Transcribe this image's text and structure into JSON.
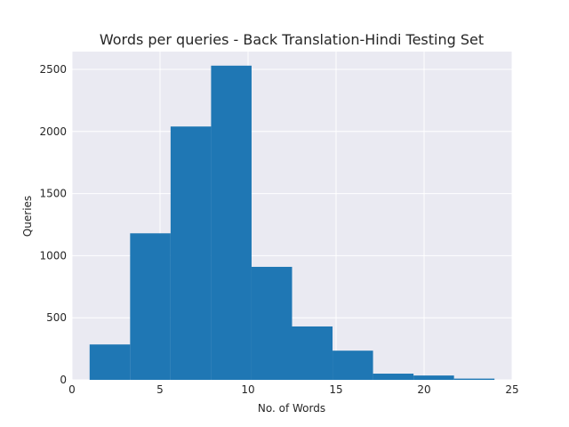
{
  "chart_data": {
    "type": "bar",
    "title": "Words per queries - Back Translation-Hindi Testing Set",
    "xlabel": "No. of Words",
    "ylabel": "Queries",
    "xlim": [
      0,
      25
    ],
    "ylim": [
      0,
      2500
    ],
    "xticks": [
      0,
      5,
      10,
      15,
      20,
      25
    ],
    "yticks": [
      0,
      500,
      1000,
      1500,
      2000,
      2500
    ],
    "grid": true,
    "bin_edges": [
      1.0,
      3.3,
      5.6,
      7.9,
      10.2,
      12.5,
      14.8,
      17.1,
      19.4,
      21.7,
      24.0
    ],
    "values": [
      285,
      1180,
      2040,
      2530,
      910,
      430,
      235,
      50,
      35,
      10
    ],
    "bar_color": "#1f77b4",
    "background_color": "#eaeaf2"
  }
}
